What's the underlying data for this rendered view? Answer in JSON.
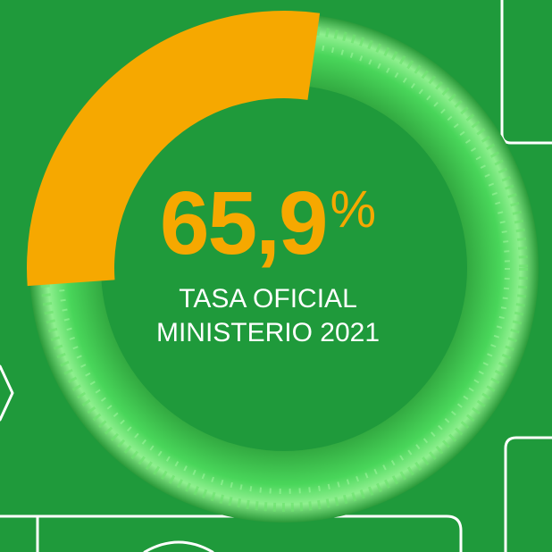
{
  "stat": {
    "number": "65,9",
    "percent_symbol": "%",
    "fraction": 0.659,
    "caption_line1": "TASA OFICIAL",
    "caption_line2": "MINISTERIO 2021"
  },
  "colors": {
    "background": "#1f9a3b",
    "accent": "#f6a800",
    "ring_glass": "#3fd14f",
    "text": "#ffffff"
  }
}
